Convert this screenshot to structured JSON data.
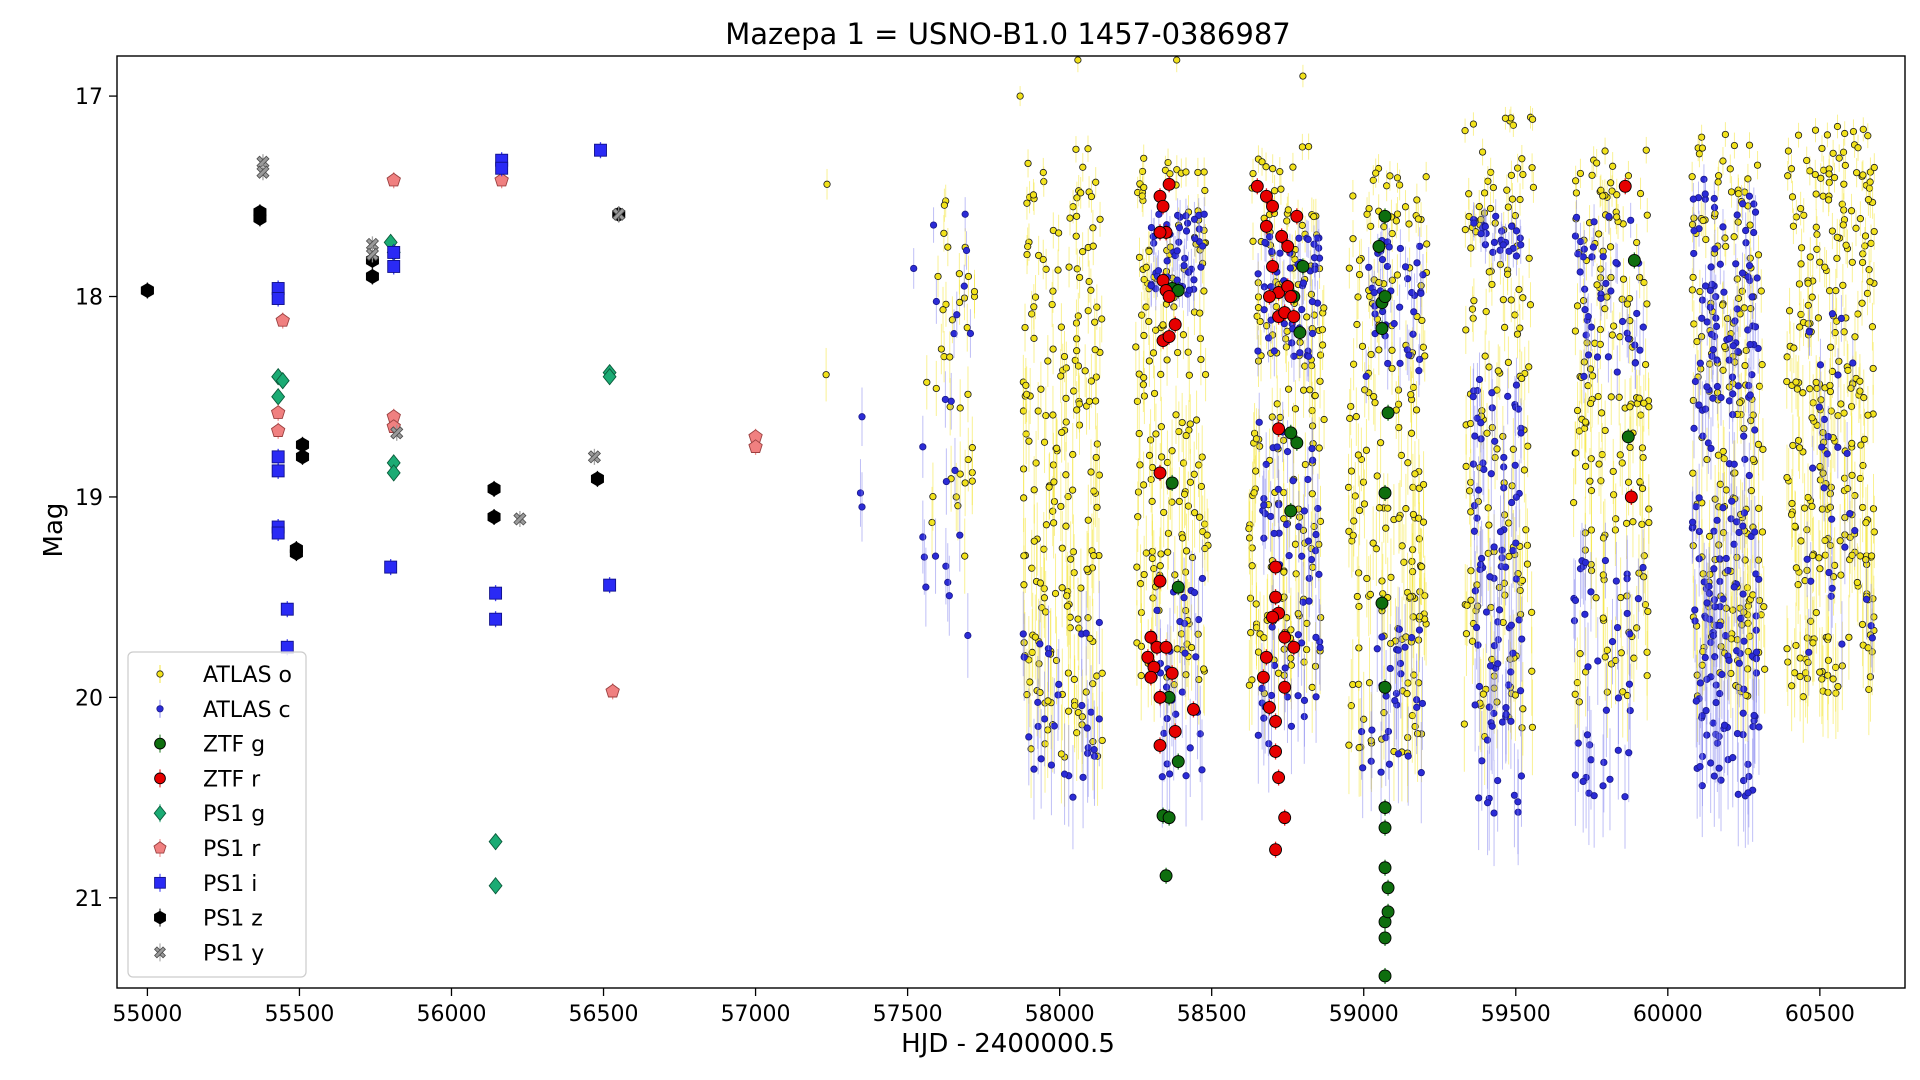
{
  "chart_data": {
    "type": "scatter",
    "title": "Mazepa 1 = USNO-B1.0 1457-0386987",
    "xlabel": "HJD - 2400000.5",
    "ylabel": "Mag",
    "xlim": [
      54900,
      60780
    ],
    "ylim": [
      21.45,
      16.8
    ],
    "y_inverted": true,
    "grid": false,
    "legend_position": "lower-left",
    "x_ticks": [
      55000,
      55500,
      56000,
      56500,
      57000,
      57500,
      58000,
      58500,
      59000,
      59500,
      60000,
      60500
    ],
    "y_ticks": [
      17,
      18,
      19,
      20,
      21
    ],
    "series": [
      {
        "name": "ATLAS o",
        "marker": "circle-small",
        "color": "#f2e21a",
        "edge": "#1a1a1a",
        "errcolor": "#f5e63c",
        "points": [
          [
            57235,
            17.44
          ],
          [
            57232,
            18.39
          ],
          [
            57870,
            17.0
          ],
          [
            58385,
            16.82
          ],
          [
            58800,
            16.9
          ],
          [
            58060,
            16.82
          ],
          [
            57600,
            17.9
          ],
          [
            57620,
            18.3
          ],
          [
            57640,
            18.55
          ],
          [
            57660,
            19.0
          ],
          [
            57700,
            17.9
          ],
          [
            57720,
            18.0
          ]
        ],
        "clusters": [
          {
            "x0": 57560,
            "x1": 57720,
            "y0": 17.5,
            "y1": 19.3,
            "n": 30,
            "seed": 1
          },
          {
            "x0": 57880,
            "x1": 58140,
            "y0": 17.25,
            "y1": 20.3,
            "n": 200,
            "seed": 2
          },
          {
            "x0": 58250,
            "x1": 58490,
            "y0": 17.3,
            "y1": 20.0,
            "n": 170,
            "seed": 3
          },
          {
            "x0": 58620,
            "x1": 58870,
            "y0": 17.25,
            "y1": 20.0,
            "n": 170,
            "seed": 4
          },
          {
            "x0": 58950,
            "x1": 59210,
            "y0": 17.3,
            "y1": 20.3,
            "n": 180,
            "seed": 5
          },
          {
            "x0": 59330,
            "x1": 59560,
            "y0": 17.1,
            "y1": 20.2,
            "n": 150,
            "seed": 6
          },
          {
            "x0": 59690,
            "x1": 59940,
            "y0": 17.25,
            "y1": 20.1,
            "n": 160,
            "seed": 7
          },
          {
            "x0": 60080,
            "x1": 60320,
            "y0": 17.15,
            "y1": 20.0,
            "n": 190,
            "seed": 8
          },
          {
            "x0": 60390,
            "x1": 60680,
            "y0": 17.15,
            "y1": 20.0,
            "n": 280,
            "seed": 9
          }
        ]
      },
      {
        "name": "ATLAS c",
        "marker": "circle-small",
        "color": "#2b2bd6",
        "edge": "#1a1a8a",
        "errcolor": "#8c8cf0",
        "points": [
          [
            57350,
            18.6
          ],
          [
            57345,
            18.98
          ],
          [
            57350,
            19.05
          ],
          [
            57520,
            17.86
          ],
          [
            57550,
            18.75
          ],
          [
            57550,
            19.2
          ],
          [
            57555,
            19.3
          ],
          [
            57560,
            19.45
          ]
        ],
        "clusters": [
          {
            "x0": 57580,
            "x1": 57720,
            "y0": 17.5,
            "y1": 19.8,
            "n": 18,
            "seed": 11
          },
          {
            "x0": 57880,
            "x1": 58140,
            "y0": 19.6,
            "y1": 20.5,
            "n": 30,
            "seed": 12
          },
          {
            "x0": 58300,
            "x1": 58480,
            "y0": 17.55,
            "y1": 18.0,
            "n": 45,
            "seed": 13
          },
          {
            "x0": 58320,
            "x1": 58470,
            "y0": 19.4,
            "y1": 20.4,
            "n": 30,
            "seed": 14
          },
          {
            "x0": 58650,
            "x1": 58860,
            "y0": 17.7,
            "y1": 18.3,
            "n": 50,
            "seed": 15
          },
          {
            "x0": 58650,
            "x1": 58860,
            "y0": 18.6,
            "y1": 20.3,
            "n": 60,
            "seed": 16
          },
          {
            "x0": 59000,
            "x1": 59200,
            "y0": 17.7,
            "y1": 18.4,
            "n": 40,
            "seed": 17
          },
          {
            "x0": 58980,
            "x1": 59200,
            "y0": 19.6,
            "y1": 20.4,
            "n": 30,
            "seed": 18
          },
          {
            "x0": 59360,
            "x1": 59520,
            "y0": 17.6,
            "y1": 17.8,
            "n": 25,
            "seed": 19
          },
          {
            "x0": 59360,
            "x1": 59520,
            "y0": 18.4,
            "y1": 20.6,
            "n": 90,
            "seed": 20
          },
          {
            "x0": 59690,
            "x1": 59920,
            "y0": 17.6,
            "y1": 18.4,
            "n": 40,
            "seed": 21
          },
          {
            "x0": 59690,
            "x1": 59920,
            "y0": 19.3,
            "y1": 20.5,
            "n": 40,
            "seed": 22
          },
          {
            "x0": 60080,
            "x1": 60300,
            "y0": 17.4,
            "y1": 18.9,
            "n": 90,
            "seed": 23
          },
          {
            "x0": 60080,
            "x1": 60300,
            "y0": 19.0,
            "y1": 20.5,
            "n": 110,
            "seed": 24
          },
          {
            "x0": 60450,
            "x1": 60680,
            "y0": 18.0,
            "y1": 19.8,
            "n": 30,
            "seed": 25
          }
        ]
      },
      {
        "name": "ZTF g",
        "marker": "circle-large",
        "color": "#0e6e0e",
        "edge": "#000000",
        "errcolor": "#0e6e0e",
        "points": [
          [
            58370,
            17.96
          ],
          [
            58390,
            17.97
          ],
          [
            58370,
            18.93
          ],
          [
            58390,
            19.45
          ],
          [
            58360,
            20.0
          ],
          [
            58390,
            20.32
          ],
          [
            58340,
            20.59
          ],
          [
            58360,
            20.6
          ],
          [
            58350,
            20.89
          ],
          [
            58770,
            18.0
          ],
          [
            58780,
            18.73
          ],
          [
            58760,
            18.68
          ],
          [
            58790,
            18.18
          ],
          [
            58760,
            19.07
          ],
          [
            58800,
            17.85
          ],
          [
            59050,
            17.75
          ],
          [
            59070,
            17.6
          ],
          [
            59060,
            18.03
          ],
          [
            59070,
            18.0
          ],
          [
            59060,
            18.16
          ],
          [
            59080,
            18.58
          ],
          [
            59070,
            18.98
          ],
          [
            59060,
            19.53
          ],
          [
            59070,
            19.95
          ],
          [
            59070,
            20.55
          ],
          [
            59070,
            20.65
          ],
          [
            59070,
            20.85
          ],
          [
            59080,
            20.95
          ],
          [
            59070,
            21.12
          ],
          [
            59080,
            21.07
          ],
          [
            59070,
            21.2
          ],
          [
            59070,
            21.39
          ],
          [
            59870,
            18.7
          ],
          [
            59890,
            17.82
          ]
        ]
      },
      {
        "name": "ZTF r",
        "marker": "circle-large",
        "color": "#e60000",
        "edge": "#000000",
        "errcolor": "#e60000",
        "points": [
          [
            58330,
            17.5
          ],
          [
            58340,
            17.55
          ],
          [
            58350,
            17.68
          ],
          [
            58330,
            17.68
          ],
          [
            58360,
            17.44
          ],
          [
            58340,
            17.92
          ],
          [
            58350,
            17.97
          ],
          [
            58360,
            18.0
          ],
          [
            58340,
            18.22
          ],
          [
            58360,
            18.2
          ],
          [
            58380,
            18.14
          ],
          [
            58330,
            18.88
          ],
          [
            58330,
            19.42
          ],
          [
            58290,
            19.8
          ],
          [
            58300,
            19.7
          ],
          [
            58320,
            19.75
          ],
          [
            58350,
            19.75
          ],
          [
            58310,
            19.85
          ],
          [
            58300,
            19.9
          ],
          [
            58330,
            20.0
          ],
          [
            58370,
            19.88
          ],
          [
            58380,
            20.17
          ],
          [
            58440,
            20.06
          ],
          [
            58330,
            20.24
          ],
          [
            58650,
            17.45
          ],
          [
            58680,
            17.5
          ],
          [
            58700,
            17.55
          ],
          [
            58730,
            17.7
          ],
          [
            58680,
            17.65
          ],
          [
            58750,
            17.75
          ],
          [
            58700,
            17.85
          ],
          [
            58720,
            17.98
          ],
          [
            58750,
            17.95
          ],
          [
            58690,
            18.0
          ],
          [
            58720,
            18.1
          ],
          [
            58740,
            18.08
          ],
          [
            58770,
            18.1
          ],
          [
            58780,
            17.6
          ],
          [
            58760,
            18.0
          ],
          [
            58720,
            18.66
          ],
          [
            58710,
            19.35
          ],
          [
            58710,
            19.5
          ],
          [
            58720,
            19.58
          ],
          [
            58700,
            19.6
          ],
          [
            58740,
            19.7
          ],
          [
            58770,
            19.75
          ],
          [
            58680,
            19.8
          ],
          [
            58670,
            19.9
          ],
          [
            58690,
            20.05
          ],
          [
            58740,
            19.95
          ],
          [
            58710,
            20.12
          ],
          [
            58710,
            20.27
          ],
          [
            58720,
            20.4
          ],
          [
            58740,
            20.6
          ],
          [
            58710,
            20.76
          ],
          [
            59860,
            17.45
          ],
          [
            59880,
            19.0
          ]
        ]
      },
      {
        "name": "PS1 g",
        "marker": "diamond",
        "color": "#1bab74",
        "edge": "#0a5a3a",
        "errcolor": "#1bab74",
        "points": [
          [
            55430,
            18.4
          ],
          [
            55445,
            18.42
          ],
          [
            55430,
            18.5
          ],
          [
            55800,
            17.73
          ],
          [
            55810,
            17.78
          ],
          [
            55810,
            18.83
          ],
          [
            55810,
            18.88
          ],
          [
            56145,
            20.72
          ],
          [
            56145,
            20.94
          ],
          [
            56520,
            18.38
          ],
          [
            56520,
            18.4
          ]
        ]
      },
      {
        "name": "PS1 r",
        "marker": "pentagon",
        "color": "#f08080",
        "edge": "#9a4040",
        "errcolor": "#f08080",
        "points": [
          [
            55445,
            18.12
          ],
          [
            55430,
            18.58
          ],
          [
            55430,
            18.67
          ],
          [
            55810,
            17.42
          ],
          [
            55810,
            18.6
          ],
          [
            55810,
            18.65
          ],
          [
            56165,
            17.42
          ],
          [
            56530,
            19.97
          ],
          [
            57000,
            18.7
          ],
          [
            57000,
            18.75
          ]
        ]
      },
      {
        "name": "PS1 i",
        "marker": "square",
        "color": "#2a2af5",
        "edge": "#10108a",
        "errcolor": "#2a2af5",
        "points": [
          [
            55430,
            17.96
          ],
          [
            55430,
            18.01
          ],
          [
            55430,
            18.8
          ],
          [
            55430,
            18.87
          ],
          [
            55430,
            19.15
          ],
          [
            55430,
            19.18
          ],
          [
            55460,
            19.56
          ],
          [
            55460,
            19.75
          ],
          [
            55810,
            17.78
          ],
          [
            55810,
            17.85
          ],
          [
            55800,
            19.35
          ],
          [
            56145,
            19.48
          ],
          [
            56145,
            19.61
          ],
          [
            56165,
            17.32
          ],
          [
            56165,
            17.36
          ],
          [
            56490,
            17.27
          ],
          [
            56520,
            19.44
          ]
        ]
      },
      {
        "name": "PS1 z",
        "marker": "hexagon",
        "color": "#000000",
        "edge": "#000000",
        "errcolor": "#000000",
        "points": [
          [
            55000,
            17.97
          ],
          [
            55370,
            17.58
          ],
          [
            55370,
            17.61
          ],
          [
            55510,
            18.74
          ],
          [
            55510,
            18.8
          ],
          [
            55490,
            19.26
          ],
          [
            55490,
            19.28
          ],
          [
            55740,
            17.82
          ],
          [
            55740,
            17.9
          ],
          [
            56140,
            18.96
          ],
          [
            56140,
            19.1
          ],
          [
            56480,
            18.91
          ],
          [
            56550,
            17.59
          ]
        ]
      },
      {
        "name": "PS1 y",
        "marker": "cross",
        "color": "#9a9a9a",
        "edge": "#4a4a4a",
        "errcolor": "#9a9a9a",
        "points": [
          [
            55380,
            17.33
          ],
          [
            55380,
            17.38
          ],
          [
            55740,
            17.74
          ],
          [
            55740,
            17.79
          ],
          [
            55820,
            18.68
          ],
          [
            56225,
            19.11
          ],
          [
            56470,
            18.8
          ],
          [
            56550,
            17.59
          ]
        ]
      }
    ]
  }
}
